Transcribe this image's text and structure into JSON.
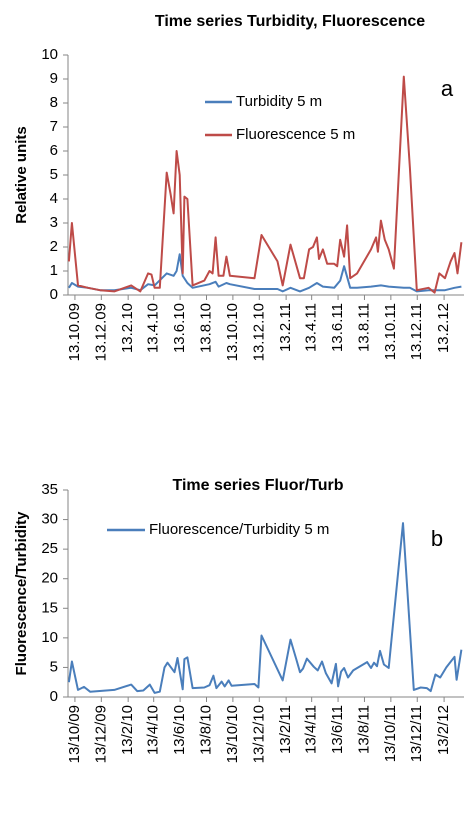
{
  "chart_data": [
    {
      "type": "line",
      "title": "Time series Turbidity, Fluorescence",
      "ylabel": "Relative units",
      "annotation": "a",
      "xlim": [
        "2009-09-27",
        "2012-03-30"
      ],
      "ylim": [
        0,
        10
      ],
      "yticks": [
        0,
        1,
        2,
        3,
        4,
        5,
        6,
        7,
        8,
        9,
        10
      ],
      "xticks": [
        {
          "value": "2009-10-13",
          "label": "13.10.09"
        },
        {
          "value": "2009-12-13",
          "label": "13.12.09"
        },
        {
          "value": "2010-02-13",
          "label": "13.2.10"
        },
        {
          "value": "2010-04-13",
          "label": "13.4.10"
        },
        {
          "value": "2010-06-13",
          "label": "13.6.10"
        },
        {
          "value": "2010-08-13",
          "label": "13.8.10"
        },
        {
          "value": "2010-10-13",
          "label": "13.10.10"
        },
        {
          "value": "2010-12-13",
          "label": "13.12.10"
        },
        {
          "value": "2011-02-13",
          "label": "13.2.11"
        },
        {
          "value": "2011-04-13",
          "label": "13.4.11"
        },
        {
          "value": "2011-06-13",
          "label": "13.6.11"
        },
        {
          "value": "2011-08-13",
          "label": "13.8.11"
        },
        {
          "value": "2011-10-13",
          "label": "13.10.11"
        },
        {
          "value": "2011-12-13",
          "label": "13.12.11"
        },
        {
          "value": "2012-02-13",
          "label": "13.2.12"
        }
      ],
      "series": [
        {
          "name": "Turbidity 5 m",
          "color": "#4a7ebb",
          "x": [
            "2009-09-29",
            "2009-10-06",
            "2009-10-20",
            "2009-11-12",
            "2009-12-10",
            "2010-01-12",
            "2010-02-20",
            "2010-03-13",
            "2010-03-31",
            "2010-04-15",
            "2010-05-13",
            "2010-05-29",
            "2010-06-05",
            "2010-06-12",
            "2010-06-19",
            "2010-06-30",
            "2010-07-12",
            "2010-08-20",
            "2010-09-03",
            "2010-09-10",
            "2010-09-28",
            "2010-10-06",
            "2010-12-02",
            "2011-01-24",
            "2011-02-05",
            "2011-02-23",
            "2011-03-17",
            "2011-04-07",
            "2011-04-25",
            "2011-05-09",
            "2011-06-04",
            "2011-06-18",
            "2011-06-27",
            "2011-07-11",
            "2011-07-27",
            "2011-08-28",
            "2011-09-20",
            "2011-10-08",
            "2011-11-12",
            "2011-11-26",
            "2011-12-12",
            "2012-01-08",
            "2012-02-15",
            "2012-03-08",
            "2012-03-24"
          ],
          "values": [
            0.3,
            0.5,
            0.35,
            0.3,
            0.2,
            0.2,
            0.3,
            0.2,
            0.45,
            0.4,
            0.9,
            0.8,
            1.0,
            1.7,
            0.8,
            0.5,
            0.3,
            0.45,
            0.55,
            0.35,
            0.5,
            0.45,
            0.25,
            0.25,
            0.15,
            0.3,
            0.15,
            0.3,
            0.5,
            0.35,
            0.3,
            0.6,
            1.2,
            0.3,
            0.3,
            0.35,
            0.4,
            0.35,
            0.3,
            0.3,
            0.15,
            0.2,
            0.2,
            0.3,
            0.35
          ]
        },
        {
          "name": "Fluorescence 5 m",
          "color": "#be4b48",
          "x": [
            "2009-09-29",
            "2009-10-06",
            "2009-10-20",
            "2009-11-12",
            "2009-12-10",
            "2010-01-12",
            "2010-02-20",
            "2010-03-13",
            "2010-03-31",
            "2010-04-08",
            "2010-04-15",
            "2010-04-27",
            "2010-05-13",
            "2010-05-22",
            "2010-05-29",
            "2010-06-05",
            "2010-06-12",
            "2010-06-19",
            "2010-06-23",
            "2010-06-30",
            "2010-07-12",
            "2010-08-08",
            "2010-08-20",
            "2010-08-27",
            "2010-09-03",
            "2010-09-10",
            "2010-09-21",
            "2010-09-28",
            "2010-10-06",
            "2010-12-02",
            "2010-12-18",
            "2011-01-24",
            "2011-02-05",
            "2011-02-23",
            "2011-03-17",
            "2011-03-26",
            "2011-04-07",
            "2011-04-16",
            "2011-04-25",
            "2011-04-30",
            "2011-05-09",
            "2011-05-19",
            "2011-06-04",
            "2011-06-11",
            "2011-06-18",
            "2011-06-27",
            "2011-07-04",
            "2011-07-11",
            "2011-07-27",
            "2011-08-28",
            "2011-09-09",
            "2011-09-13",
            "2011-09-20",
            "2011-09-29",
            "2011-10-08",
            "2011-10-20",
            "2011-11-12",
            "2011-11-26",
            "2011-12-12",
            "2012-01-08",
            "2012-01-22",
            "2012-02-02",
            "2012-02-15",
            "2012-02-28",
            "2012-03-08",
            "2012-03-15",
            "2012-03-24"
          ],
          "values": [
            1.4,
            3.0,
            0.4,
            0.3,
            0.2,
            0.15,
            0.4,
            0.15,
            0.9,
            0.85,
            0.3,
            0.3,
            5.1,
            4.2,
            3.4,
            6.0,
            5.0,
            0.9,
            4.1,
            4.0,
            0.4,
            0.6,
            1.0,
            0.9,
            2.4,
            0.8,
            0.8,
            1.6,
            0.8,
            0.7,
            2.5,
            1.4,
            0.4,
            2.1,
            0.7,
            0.7,
            1.9,
            2.0,
            2.4,
            1.5,
            1.9,
            1.3,
            1.3,
            1.2,
            2.3,
            1.6,
            2.9,
            0.7,
            0.9,
            1.9,
            2.4,
            1.8,
            3.1,
            2.3,
            1.9,
            1.1,
            9.1,
            5.3,
            0.2,
            0.3,
            0.1,
            0.9,
            0.7,
            1.4,
            1.75,
            0.9,
            2.2
          ]
        }
      ]
    },
    {
      "type": "line",
      "title": "Time series Fluor/Turb",
      "ylabel": "Fluorescence/Turbidity",
      "annotation": "b",
      "xlim": [
        "2009-09-27",
        "2012-03-30"
      ],
      "ylim": [
        0,
        35
      ],
      "yticks": [
        0,
        5,
        10,
        15,
        20,
        25,
        30,
        35
      ],
      "xticks": [
        {
          "value": "2009-10-13",
          "label": "13/10/09"
        },
        {
          "value": "2009-12-13",
          "label": "13/12/09"
        },
        {
          "value": "2010-02-13",
          "label": "13/2/10"
        },
        {
          "value": "2010-04-13",
          "label": "13/4/10"
        },
        {
          "value": "2010-06-13",
          "label": "13/6/10"
        },
        {
          "value": "2010-08-13",
          "label": "13/8/10"
        },
        {
          "value": "2010-10-13",
          "label": "13/10/10"
        },
        {
          "value": "2010-12-13",
          "label": "13/12/10"
        },
        {
          "value": "2011-02-13",
          "label": "13/2/11"
        },
        {
          "value": "2011-04-13",
          "label": "13/4/11"
        },
        {
          "value": "2011-06-13",
          "label": "13/6/11"
        },
        {
          "value": "2011-08-13",
          "label": "13/8/11"
        },
        {
          "value": "2011-10-13",
          "label": "13/10/11"
        },
        {
          "value": "2011-12-13",
          "label": "13/12/11"
        },
        {
          "value": "2012-02-13",
          "label": "13/2/12"
        }
      ],
      "series": [
        {
          "name": "Fluorescence/Turbidity 5 m",
          "color": "#4a7ebb",
          "x": [
            "2009-09-29",
            "2009-10-06",
            "2009-10-20",
            "2009-11-03",
            "2009-11-17",
            "2010-01-12",
            "2010-02-20",
            "2010-03-06",
            "2010-03-20",
            "2010-04-04",
            "2010-04-15",
            "2010-04-27",
            "2010-05-08",
            "2010-05-15",
            "2010-05-31",
            "2010-06-07",
            "2010-06-19",
            "2010-06-23",
            "2010-06-30",
            "2010-07-12",
            "2010-08-08",
            "2010-08-20",
            "2010-08-29",
            "2010-09-05",
            "2010-09-17",
            "2010-09-24",
            "2010-10-03",
            "2010-10-10",
            "2010-12-02",
            "2010-12-11",
            "2010-12-18",
            "2011-02-05",
            "2011-02-23",
            "2011-03-08",
            "2011-03-17",
            "2011-03-24",
            "2011-04-02",
            "2011-04-18",
            "2011-04-27",
            "2011-05-07",
            "2011-05-16",
            "2011-05-29",
            "2011-06-08",
            "2011-06-13",
            "2011-06-20",
            "2011-06-27",
            "2011-07-06",
            "2011-07-18",
            "2011-08-19",
            "2011-08-28",
            "2011-09-04",
            "2011-09-11",
            "2011-09-18",
            "2011-09-27",
            "2011-10-08",
            "2011-11-10",
            "2011-12-05",
            "2011-12-21",
            "2012-01-04",
            "2012-01-13",
            "2012-01-24",
            "2012-02-04",
            "2012-02-18",
            "2012-03-08",
            "2012-03-13",
            "2012-03-24"
          ],
          "values": [
            2.5,
            6.0,
            1.2,
            1.7,
            0.9,
            1.2,
            2.1,
            1.0,
            1.1,
            2.1,
            0.7,
            0.9,
            5.0,
            5.8,
            4.2,
            6.6,
            1.3,
            6.4,
            6.7,
            1.5,
            1.6,
            2.0,
            3.6,
            1.5,
            2.6,
            1.8,
            2.8,
            1.9,
            2.2,
            1.6,
            10.4,
            2.8,
            9.7,
            6.5,
            4.2,
            4.8,
            6.5,
            5.1,
            4.5,
            6.0,
            4.0,
            2.3,
            5.6,
            1.8,
            4.3,
            4.9,
            3.3,
            4.5,
            5.9,
            4.9,
            5.8,
            5.2,
            7.8,
            5.5,
            4.9,
            29.4,
            1.2,
            1.6,
            1.5,
            1.0,
            3.8,
            3.3,
            5.0,
            6.8,
            2.9,
            8.0
          ]
        }
      ]
    }
  ]
}
